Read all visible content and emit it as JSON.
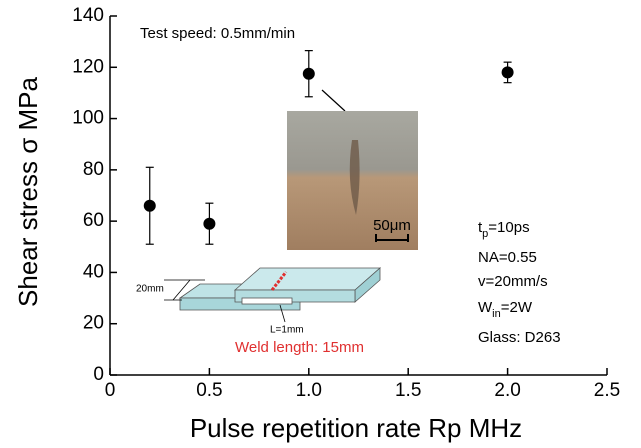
{
  "chart_data": {
    "type": "scatter",
    "xlabel": "Pulse repetition rate  Rp  MHz",
    "ylabel": "Shear stress  σ  MPa",
    "x": [
      0.2,
      0.5,
      1.0,
      2.0
    ],
    "values": [
      66,
      59,
      117.5,
      118
    ],
    "errors": [
      15,
      8,
      9,
      4
    ],
    "color": "#000000",
    "xlim": [
      0,
      2.5
    ],
    "xticks": [
      0,
      0.5,
      {
        "value": 1,
        "label": "1.0"
      },
      1.5,
      {
        "value": 2,
        "label": "2.0"
      },
      2.5
    ],
    "ylim": [
      0,
      140
    ],
    "yticks": [
      0,
      20,
      40,
      60,
      80,
      100,
      120,
      140
    ],
    "annotations": {
      "test_speed": "Test speed: 0.5mm/min",
      "scale_bar": "50μm",
      "tp": {
        "main": "t",
        "sub": "p",
        "rest": "=10ps"
      },
      "na": "NA=0.55",
      "v": "v=20mm/s",
      "win": {
        "main": "W",
        "sub": "in",
        "rest": "=2W"
      },
      "glass": "Glass: D263",
      "width": "20mm",
      "length": "L=1mm",
      "weld": "Weld length: 15mm"
    }
  }
}
